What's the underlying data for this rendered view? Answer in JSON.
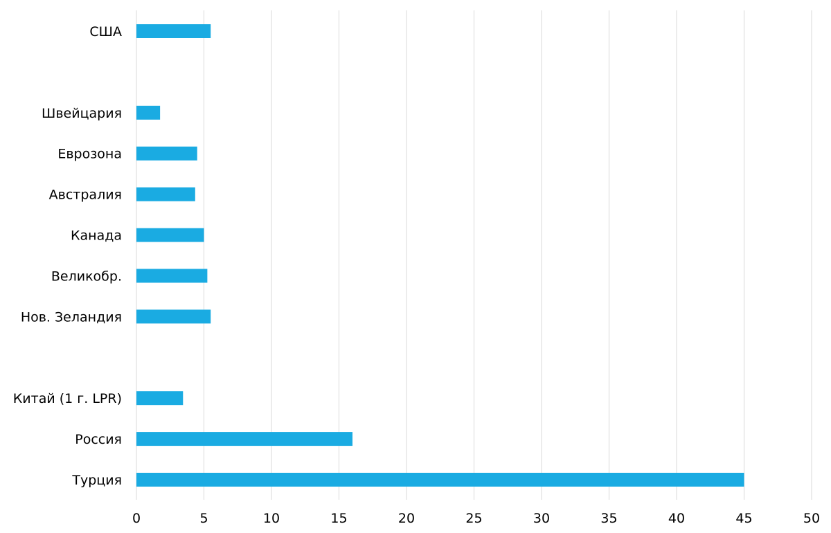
{
  "chart_data": {
    "type": "bar",
    "orientation": "horizontal",
    "categories": [
      "США",
      "",
      "Швейцария",
      "Еврозона",
      "Австралия",
      "Канада",
      "Великобр.",
      "Нов. Зеландия",
      "",
      "Китай (1 г. LPR)",
      "Россия",
      "Турция"
    ],
    "values": [
      5.5,
      null,
      1.75,
      4.5,
      4.35,
      5.0,
      5.25,
      5.5,
      null,
      3.45,
      16.0,
      45.0
    ],
    "xlim": [
      0,
      50
    ],
    "xticks": [
      "0",
      "5",
      "10",
      "15",
      "20",
      "25",
      "30",
      "35",
      "40",
      "45",
      "50"
    ],
    "title": "",
    "xlabel": "",
    "ylabel": "",
    "grid": "vertical",
    "legend": "none",
    "bar_color": "#1aabe2"
  }
}
